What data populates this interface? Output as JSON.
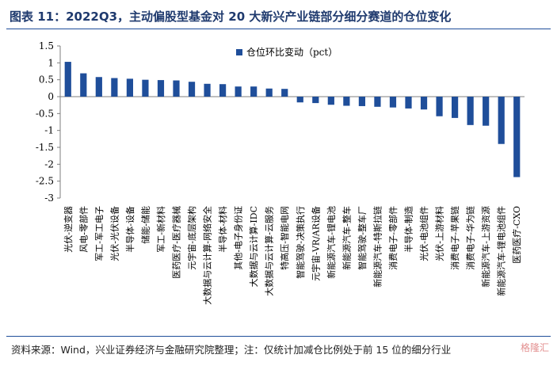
{
  "title": "图表 11：2022Q3，主动偏股型基金对 20 大新兴产业链部分细分赛道的仓位变化",
  "source": "资料来源：Wind，兴业证券经济与金融研究院整理；注：仅统计加减仓比例处于前 15 位的细分行业",
  "watermark": "格隆汇",
  "chart_data": {
    "type": "bar",
    "ylim": [
      -3,
      1.5
    ],
    "yticks": [
      1.5,
      1,
      0.5,
      0,
      -0.5,
      -1,
      -1.5,
      -2,
      -2.5,
      -3
    ],
    "legend_position": "top-center",
    "bar_color": "#1f4e9a",
    "series": [
      {
        "name": "仓位环比变动（pct）",
        "categories": [
          "光伏-逆变器",
          "风电-零部件",
          "军工-军工电子",
          "光伏-光伏设备",
          "半导体-设备",
          "储能-储能",
          "军工-新材料",
          "医药医疗-医疗器械",
          "元宇宙-底层架构",
          "大数据与云计算-网络安全",
          "半导体-材料",
          "其他-电子身份证",
          "大数据与云计算-IDC",
          "大数据与云计算-云服务",
          "特高压-智能电网",
          "智能驾驶-决策执行",
          "元宇宙-VR/AR设备",
          "新能源汽车-锂电池",
          "新能源汽车-整车",
          "智能驾驶-整车厂",
          "新能源汽车-特斯拉链",
          "消费电子-零部件",
          "半导体-制造",
          "光伏-电池组件",
          "光伏-上游材料",
          "消费电子-苹果链",
          "消费电子-华为链",
          "新能源汽车-上游资源",
          "新能源汽车-锂电池组件",
          "医药医疗-CXO"
        ],
        "values": [
          1.03,
          0.69,
          0.58,
          0.55,
          0.53,
          0.5,
          0.49,
          0.48,
          0.44,
          0.38,
          0.37,
          0.3,
          0.3,
          0.24,
          0.23,
          -0.17,
          -0.19,
          -0.24,
          -0.27,
          -0.28,
          -0.3,
          -0.32,
          -0.35,
          -0.38,
          -0.58,
          -0.63,
          -0.84,
          -0.86,
          -1.4,
          -2.38
        ]
      }
    ]
  }
}
